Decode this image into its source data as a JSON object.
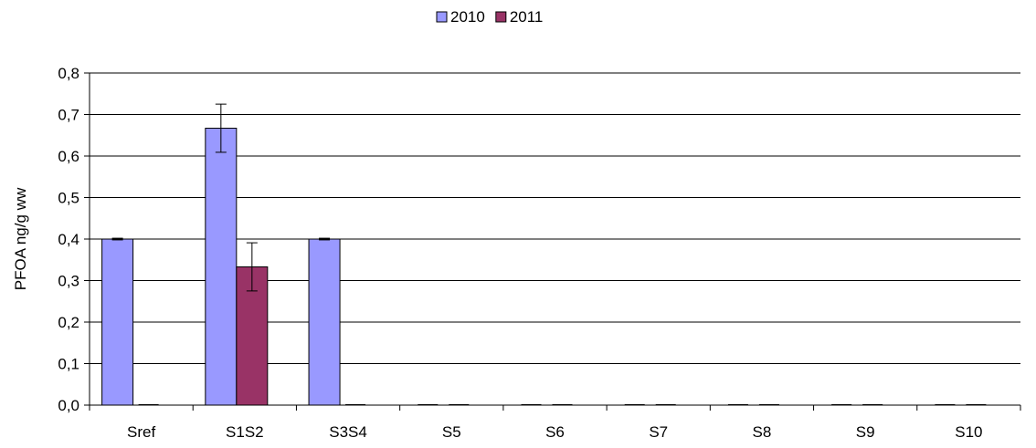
{
  "chart_data": {
    "type": "bar",
    "title": "",
    "xlabel": "",
    "ylabel": "PFOA ng/g ww",
    "categories": [
      "Sref",
      "S1S2",
      "S3S4",
      "S5",
      "S6",
      "S7",
      "S8",
      "S9",
      "S10"
    ],
    "series": [
      {
        "name": "2010",
        "color": "#9999ff",
        "values": [
          0.4,
          0.667,
          0.4,
          0,
          0,
          0,
          0,
          0,
          0
        ],
        "error": [
          0.002,
          0.058,
          0.002,
          0,
          0,
          0,
          0,
          0,
          0
        ]
      },
      {
        "name": "2011",
        "color": "#993366",
        "values": [
          0,
          0.333,
          0,
          0,
          0,
          0,
          0,
          0,
          0
        ],
        "error": [
          0,
          0.058,
          0,
          0,
          0,
          0,
          0,
          0,
          0
        ]
      }
    ],
    "ylim": [
      0,
      0.8
    ],
    "yticks": [
      "0,0",
      "0,1",
      "0,2",
      "0,3",
      "0,4",
      "0,5",
      "0,6",
      "0,7",
      "0,8"
    ],
    "grid": true,
    "legend_position": "top-center"
  }
}
